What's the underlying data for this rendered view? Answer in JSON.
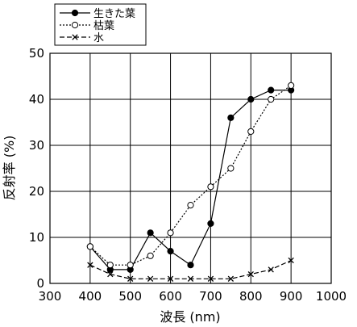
{
  "chart_data": {
    "type": "line",
    "xlabel": "波長 (nm)",
    "ylabel": "反射率 (%)",
    "xlim": [
      300,
      1000
    ],
    "ylim": [
      0,
      50
    ],
    "xticks": [
      300,
      400,
      500,
      600,
      700,
      800,
      900,
      1000
    ],
    "yticks": [
      0,
      10,
      20,
      30,
      40,
      50
    ],
    "grid": true,
    "legend_position": "top-left",
    "x": [
      400,
      450,
      500,
      550,
      600,
      650,
      700,
      750,
      800,
      850,
      900
    ],
    "series": [
      {
        "name": "生きた葉",
        "values": [
          8,
          3,
          3,
          11,
          7,
          4,
          13,
          36,
          40,
          42,
          42
        ],
        "line": "solid",
        "marker": "filled-circle"
      },
      {
        "name": "枯葉",
        "values": [
          8,
          4,
          4,
          6,
          11,
          17,
          21,
          25,
          33,
          40,
          43
        ],
        "line": "dotted",
        "marker": "open-circle"
      },
      {
        "name": "水",
        "values": [
          4,
          2,
          1,
          1,
          1,
          1,
          1,
          1,
          2,
          3,
          5
        ],
        "line": "dashed",
        "marker": "x"
      }
    ],
    "colors": {
      "line": "#000000",
      "grid": "#000000",
      "background": "#ffffff"
    }
  }
}
